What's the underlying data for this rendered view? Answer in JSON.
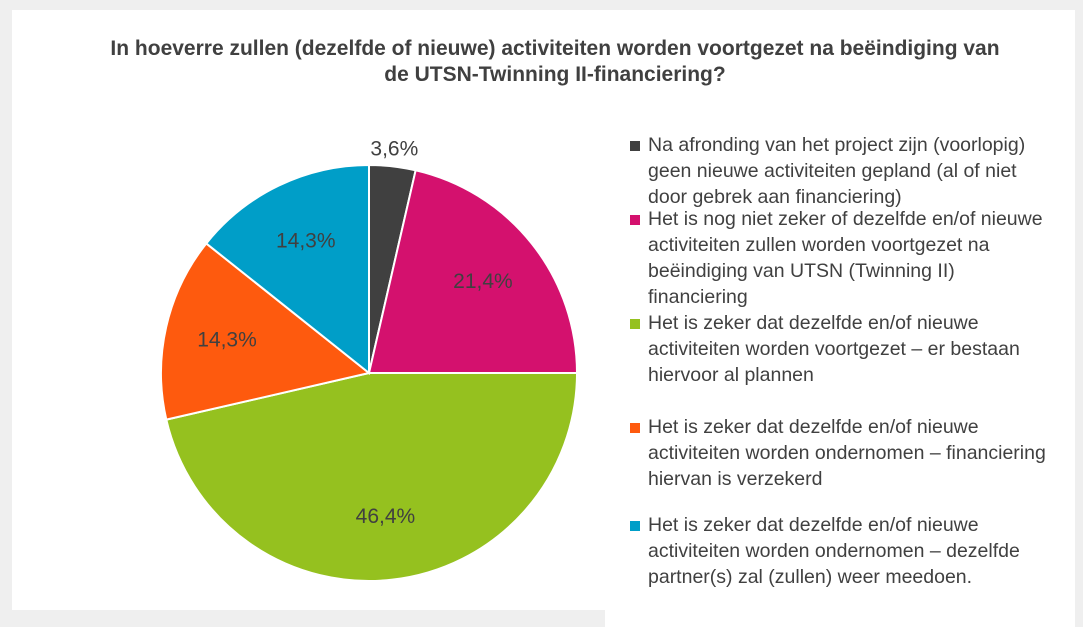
{
  "chart_data": {
    "type": "pie",
    "title": "In hoeverre zullen (dezelfde of nieuwe) activiteiten worden voortgezet na beëindiging van de UTSN-Twinning II-financiering?",
    "categories": [
      "Na afronding van het project zijn (voorlopig) geen nieuwe activiteiten gepland (al of niet door gebrek aan financiering)",
      "Het is nog niet zeker of dezelfde en/of nieuwe activiteiten zullen worden voortgezet na beëindiging van UTSN (Twinning II) financiering",
      "Het is zeker dat dezelfde en/of nieuwe activiteiten worden voortgezet – er bestaan hiervoor al plannen",
      "Het is zeker dat dezelfde en/of nieuwe activiteiten worden ondernomen – financiering hiervan is verzekerd",
      "Het is zeker dat dezelfde en/of nieuwe activiteiten worden ondernomen – dezelfde partner(s) zal (zullen) weer meedoen."
    ],
    "values": [
      3.6,
      21.4,
      46.4,
      14.3,
      14.3
    ],
    "value_labels": [
      "3,6%",
      "21,4%",
      "46,4%",
      "14,3%",
      "14,3%"
    ],
    "colors": [
      "#404040",
      "#d4116e",
      "#95c11f",
      "#fe5a0e",
      "#009ec8"
    ],
    "legend": "right"
  }
}
